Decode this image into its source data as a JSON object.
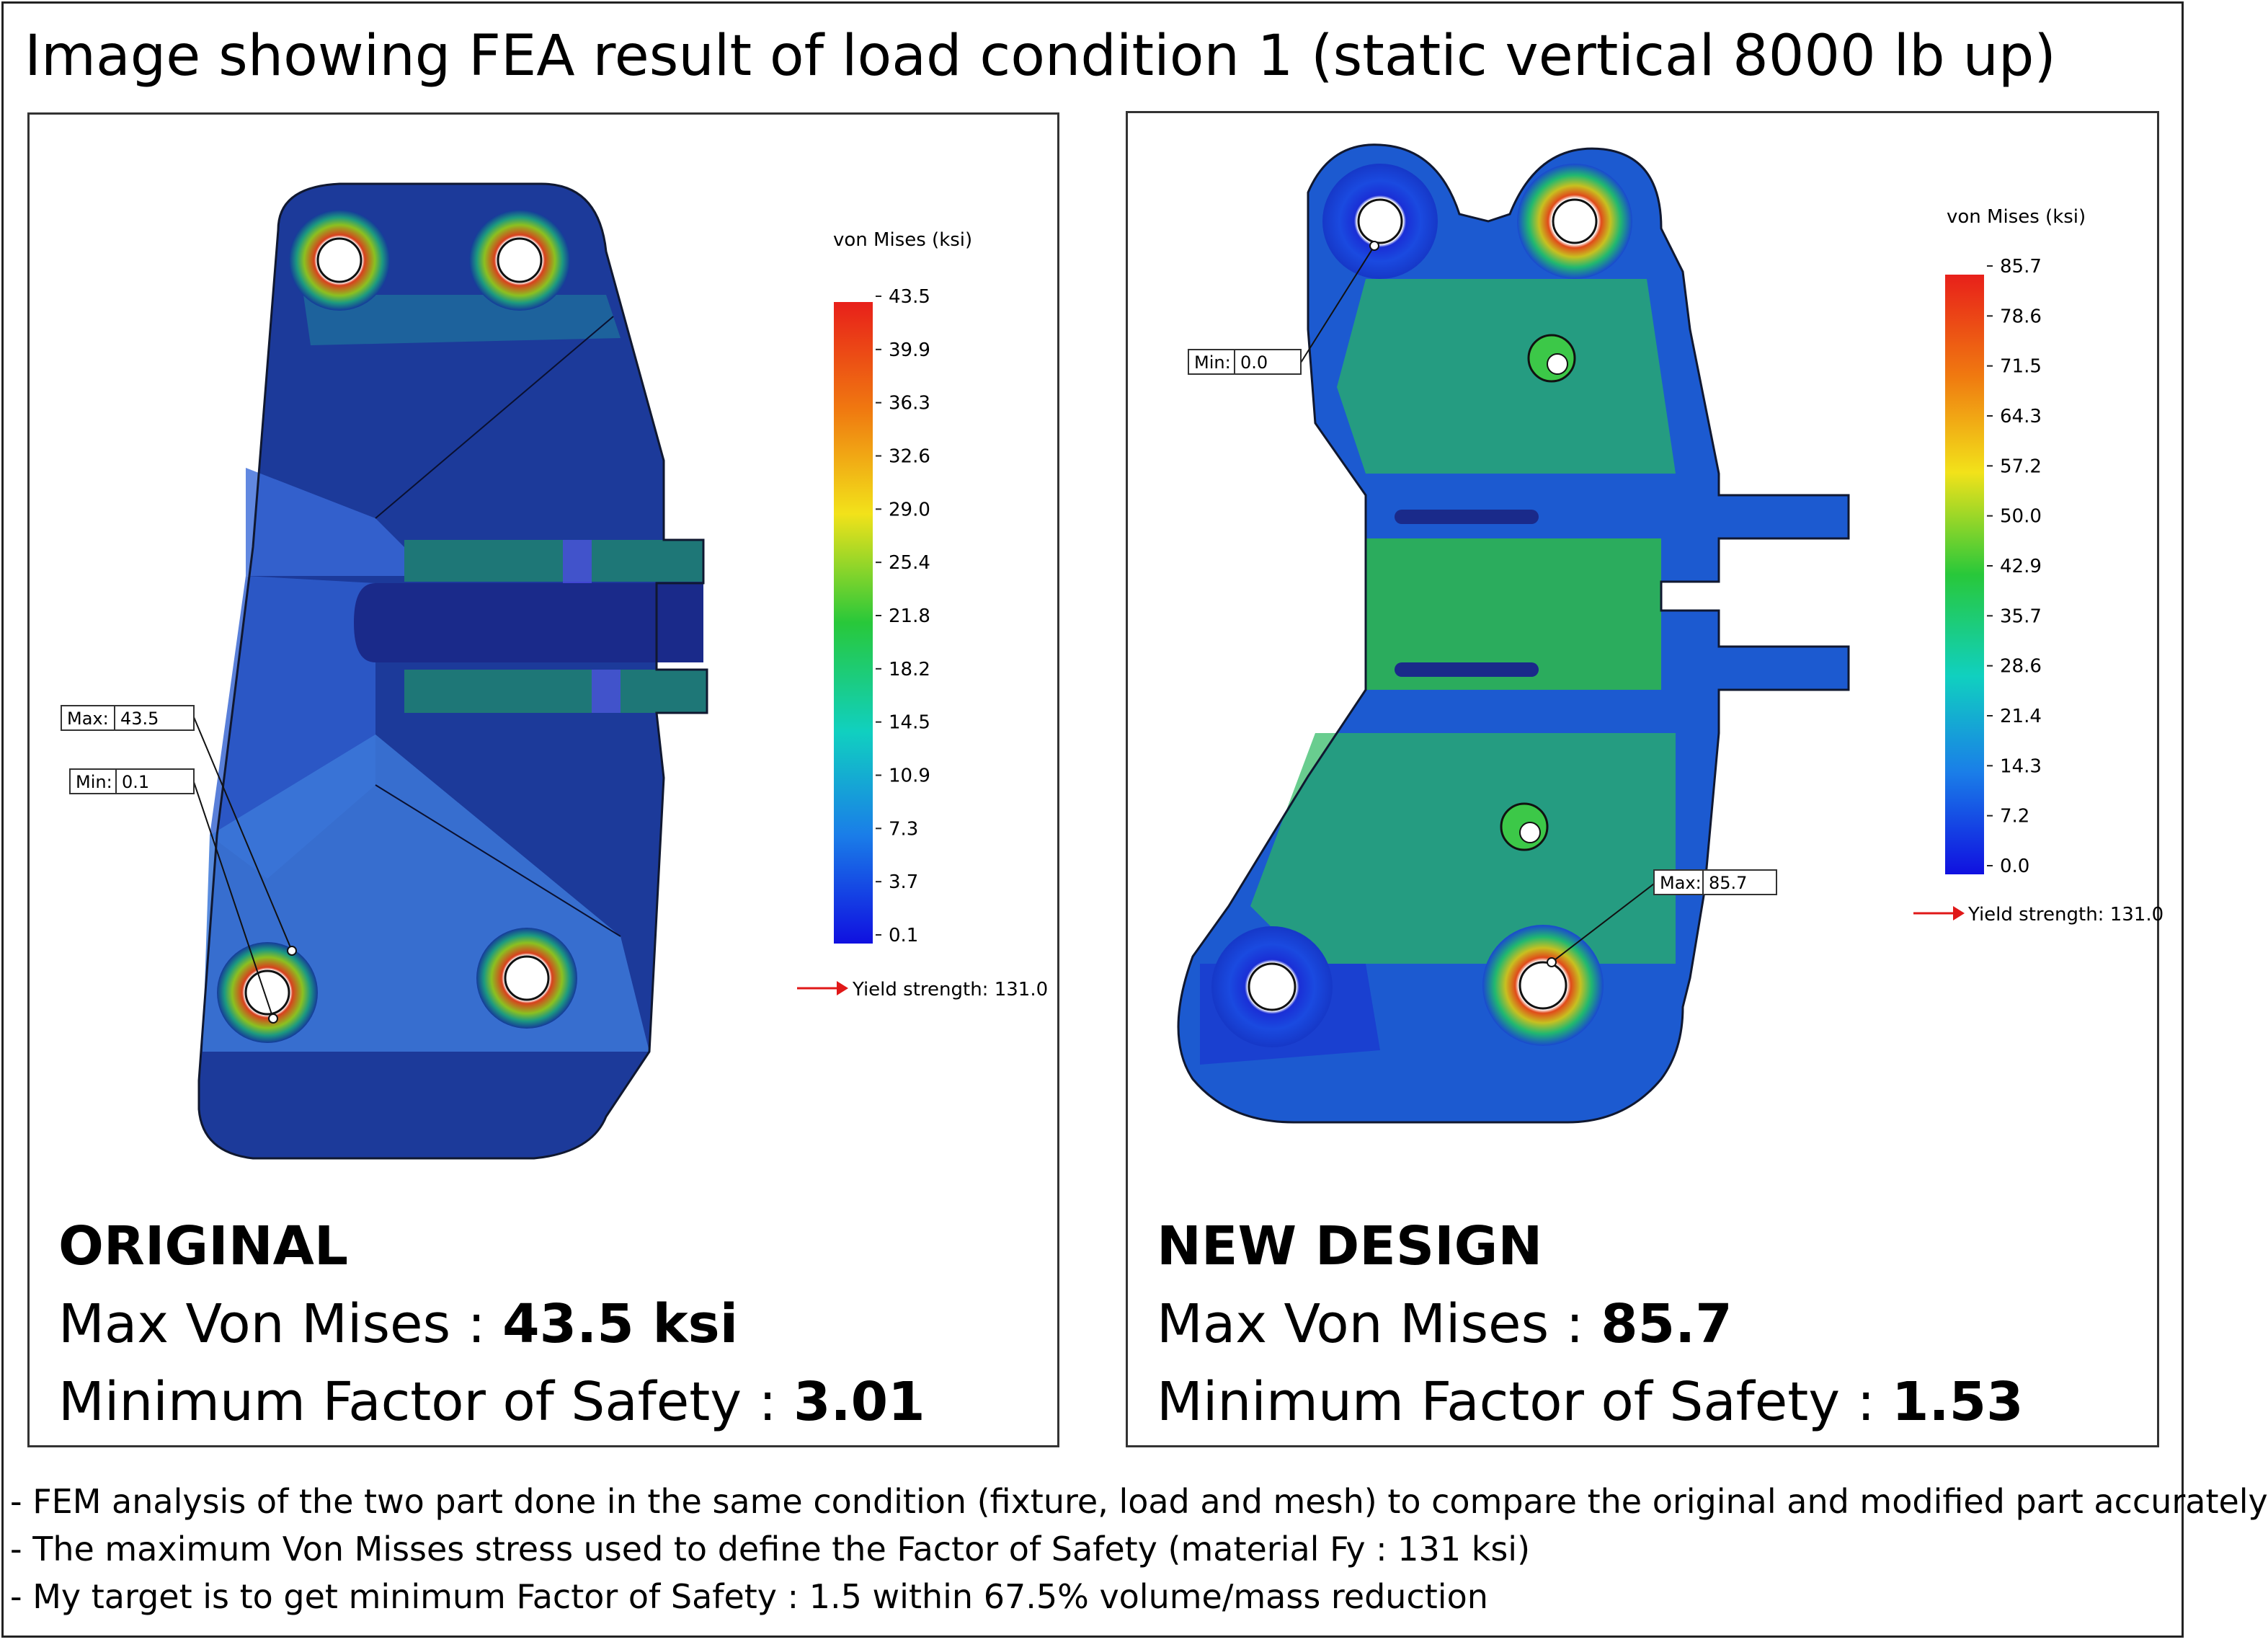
{
  "title": "Image showing FEA result of load condition 1 (static vertical 8000 lb up)",
  "colors": {
    "stress_low": "#1a2fd6",
    "stress_mid": "#1ec84a",
    "stress_high": "#e8281e",
    "frame": "#222222"
  },
  "original": {
    "heading": "ORIGINAL",
    "stress_label": "Max Von Mises : ",
    "stress_value": "43.5 ksi",
    "fos_label": "Minimum Factor of Safety : ",
    "fos_value": "3.01",
    "legend_title": "von Mises (ksi)",
    "legend_ticks": [
      "43.5",
      "39.9",
      "36.3",
      "32.6",
      "29.0",
      "25.4",
      "21.8",
      "18.2",
      "14.5",
      "10.9",
      "7.3",
      "3.7",
      "0.1"
    ],
    "yield_text": "Yield strength: 131.0",
    "max_key": "Max:",
    "max_val": "43.5",
    "min_key": "Min:",
    "min_val": "0.1"
  },
  "new_design": {
    "heading": "NEW DESIGN",
    "stress_label": "Max Von Mises : ",
    "stress_value": "85.7",
    "fos_label": "Minimum Factor of Safety : ",
    "fos_value": "1.53",
    "legend_title": "von Mises (ksi)",
    "legend_ticks": [
      "85.7",
      "78.6",
      "71.5",
      "64.3",
      "57.2",
      "50.0",
      "42.9",
      "35.7",
      "28.6",
      "21.4",
      "14.3",
      "7.2",
      "0.0"
    ],
    "yield_text": "Yield strength: 131.0",
    "max_key": "Max:",
    "max_val": "85.7",
    "min_key": "Min:",
    "min_val": "0.0"
  },
  "notes": [
    "- FEM analysis of the two part done in the same condition (fixture, load and mesh) to compare the original and modified part accurately",
    "- The maximum Von Misses stress used to define the Factor of Safety (material Fy : 131 ksi)",
    "- My target is to get minimum Factor of Safety : 1.5 within 67.5% volume/mass reduction"
  ]
}
